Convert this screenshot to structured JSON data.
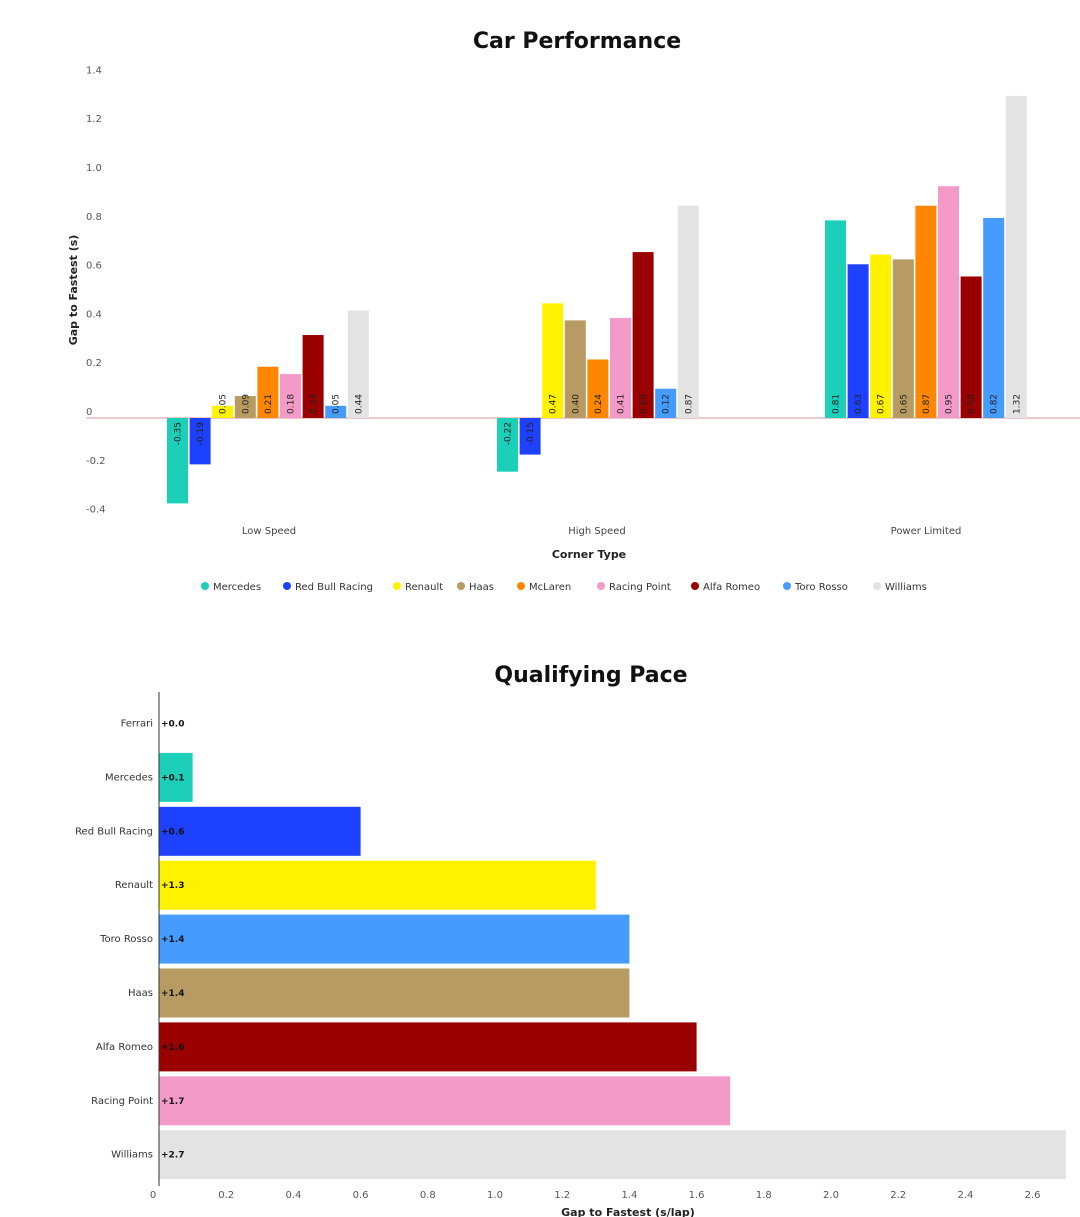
{
  "chart_data": [
    {
      "type": "bar",
      "title": "Car Performance",
      "xlabel": "Corner Type",
      "ylabel": "Gap to Fastest (s)",
      "ylim": [
        -0.4,
        1.4
      ],
      "yticks": [
        "1.4",
        "1.2",
        "1.0",
        "0.8",
        "0.6",
        "0.4",
        "0.2",
        "0",
        "-0.2",
        "-0.4"
      ],
      "categories": [
        "Low Speed",
        "High Speed",
        "Power Limited"
      ],
      "legend_position": "bottom",
      "series": [
        {
          "name": "Mercedes",
          "color": "#1ccfb8",
          "values": [
            -0.35,
            -0.22,
            0.81
          ],
          "labels": [
            "-0.35",
            "-0.22",
            "0.81"
          ]
        },
        {
          "name": "Red Bull Racing",
          "color": "#1e41ff",
          "values": [
            -0.19,
            -0.15,
            0.63
          ],
          "labels": [
            "-0.19",
            "-0.15",
            "0.63"
          ]
        },
        {
          "name": "Renault",
          "color": "#fff200",
          "values": [
            0.05,
            0.47,
            0.67
          ],
          "labels": [
            "0.05",
            "0.47",
            "0.67"
          ]
        },
        {
          "name": "Haas",
          "color": "#b79b62",
          "values": [
            0.09,
            0.4,
            0.65
          ],
          "labels": [
            "0.09",
            "0.40",
            "0.65"
          ]
        },
        {
          "name": "McLaren",
          "color": "#ff8700",
          "values": [
            0.21,
            0.24,
            0.87
          ],
          "labels": [
            "0.21",
            "0.24",
            "0.87"
          ]
        },
        {
          "name": "Racing Point",
          "color": "#f49ac8",
          "values": [
            0.18,
            0.41,
            0.95
          ],
          "labels": [
            "0.18",
            "0.41",
            "0.95"
          ]
        },
        {
          "name": "Alfa Romeo",
          "color": "#9b0000",
          "values": [
            0.34,
            0.68,
            0.58
          ],
          "labels": [
            "0.34",
            "0.68",
            "0.58"
          ]
        },
        {
          "name": "Toro Rosso",
          "color": "#469bff",
          "values": [
            0.05,
            0.12,
            0.82
          ],
          "labels": [
            "0.05",
            "0.12",
            "0.82"
          ]
        },
        {
          "name": "Williams",
          "color": "#e3e3e3",
          "values": [
            0.44,
            0.87,
            1.32
          ],
          "labels": [
            "0.44",
            "0.87",
            "1.32"
          ]
        }
      ]
    },
    {
      "type": "bar",
      "orientation": "horizontal",
      "title": "Qualifying Pace",
      "xlabel": "Gap to Fastest (s/lap)",
      "xlim": [
        0,
        2.7
      ],
      "xticks": [
        "0",
        "0.2",
        "0.4",
        "0.6",
        "0.8",
        "1.0",
        "1.2",
        "1.4",
        "1.6",
        "1.8",
        "2.0",
        "2.2",
        "2.4",
        "2.6"
      ],
      "categories": [
        "Ferrari",
        "Mercedes",
        "Red Bull Racing",
        "Renault",
        "Toro Rosso",
        "Haas",
        "Alfa Romeo",
        "Racing Point",
        "Williams"
      ],
      "values": [
        0.0,
        0.1,
        0.6,
        1.3,
        1.4,
        1.4,
        1.6,
        1.7,
        2.7
      ],
      "labels": [
        "+0.0",
        "+0.1",
        "+0.6",
        "+1.3",
        "+1.4",
        "+1.4",
        "+1.6",
        "+1.7",
        "+2.7"
      ],
      "colors": [
        "#dc0000",
        "#1ccfb8",
        "#1e41ff",
        "#fff200",
        "#469bff",
        "#b79b62",
        "#9b0000",
        "#f49ac8",
        "#e3e3e3"
      ]
    }
  ]
}
